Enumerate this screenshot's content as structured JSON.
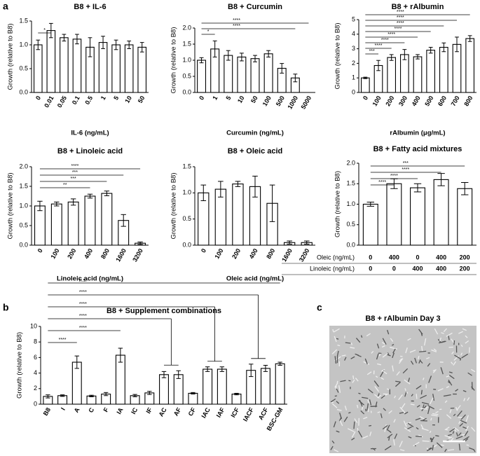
{
  "panel_labels": [
    "a",
    "b",
    "c"
  ],
  "chart_data": [
    {
      "type": "bar",
      "title": "B8 + IL-6",
      "xlabel": "IL-6 (ng/mL)",
      "ylabel": "Growth (relative to B8)",
      "categories": [
        "0",
        "0.01",
        "0.05",
        "0.1",
        "0.5",
        "1",
        "5",
        "10",
        "50"
      ],
      "values": [
        1.0,
        1.3,
        1.15,
        1.12,
        0.95,
        1.05,
        1.0,
        1.0,
        0.95
      ],
      "errors": [
        0.1,
        0.15,
        0.07,
        0.1,
        0.2,
        0.13,
        0.1,
        0.08,
        0.1
      ],
      "ylim": [
        0,
        1.5
      ],
      "yticks": [
        {
          "value": 0,
          "label": "0.0"
        },
        {
          "value": 0.5,
          "label": "0.5"
        },
        {
          "value": 1,
          "label": "1.0"
        },
        {
          "value": 1.5,
          "label": "1.5"
        }
      ],
      "comparisons": [
        {
          "label": "*",
          "to": [
            1
          ]
        }
      ]
    },
    {
      "type": "bar",
      "title": "B8 + Curcumin",
      "xlabel": "Curcumin (ng/mL)",
      "ylabel": "Growth (relative to B8)",
      "categories": [
        "0",
        "1",
        "5",
        "10",
        "50",
        "100",
        "500",
        "1000",
        "5000"
      ],
      "values": [
        1.0,
        1.35,
        1.15,
        1.1,
        1.05,
        1.2,
        0.75,
        0.45,
        0.0
      ],
      "errors": [
        0.08,
        0.25,
        0.15,
        0.12,
        0.1,
        0.1,
        0.15,
        0.12,
        0.0
      ],
      "ylim": [
        0,
        2
      ],
      "yticks": [
        {
          "value": 0,
          "label": "0.0"
        },
        {
          "value": 0.5,
          "label": "0.5"
        },
        {
          "value": 1,
          "label": "1.0"
        },
        {
          "value": 1.5,
          "label": "1.5"
        },
        {
          "value": 2,
          "label": "2.0"
        }
      ],
      "comparisons": [
        {
          "label": "****",
          "to": [
            8
          ]
        },
        {
          "label": "****",
          "to": [
            7
          ]
        },
        {
          "label": "*",
          "to": [
            1
          ]
        }
      ]
    },
    {
      "type": "bar",
      "title": "B8 + rAlbumin",
      "xlabel": "rAlbumin (μg/mL)",
      "ylabel": "Growth (relative to B8)",
      "categories": [
        "0",
        "100",
        "200",
        "300",
        "400",
        "500",
        "600",
        "700",
        "800"
      ],
      "values": [
        1.0,
        1.85,
        2.4,
        2.6,
        2.45,
        2.9,
        3.1,
        3.3,
        3.7
      ],
      "errors": [
        0.05,
        0.35,
        0.2,
        0.35,
        0.15,
        0.2,
        0.3,
        0.5,
        0.2
      ],
      "ylim": [
        0,
        5
      ],
      "yticks": [
        0,
        1,
        2,
        3,
        4,
        5
      ],
      "comparisons": [
        {
          "label": "****",
          "to": [
            8
          ]
        },
        {
          "label": "****",
          "to": [
            7
          ]
        },
        {
          "label": "****",
          "to": [
            6
          ]
        },
        {
          "label": "****",
          "to": [
            5
          ]
        },
        {
          "label": "****",
          "to": [
            4
          ]
        },
        {
          "label": "****",
          "to": [
            3
          ]
        },
        {
          "label": "****",
          "to": [
            2
          ]
        },
        {
          "label": "***",
          "to": [
            1
          ]
        }
      ]
    },
    {
      "type": "bar",
      "title": "B8 + Linoleic acid",
      "xlabel": "Linoleic acid (ng/mL)",
      "ylabel": "Growth (relative to B8)",
      "categories": [
        "0",
        "100",
        "200",
        "400",
        "800",
        "1600",
        "3200"
      ],
      "values": [
        1.0,
        1.05,
        1.1,
        1.25,
        1.32,
        0.63,
        0.05
      ],
      "errors": [
        0.12,
        0.05,
        0.08,
        0.05,
        0.06,
        0.15,
        0.03
      ],
      "ylim": [
        0,
        2
      ],
      "yticks": [
        {
          "value": 0,
          "label": "0.0"
        },
        {
          "value": 0.5,
          "label": "0.5"
        },
        {
          "value": 1,
          "label": "1.0"
        },
        {
          "value": 1.5,
          "label": "1.5"
        },
        {
          "value": 2,
          "label": "2.0"
        }
      ],
      "comparisons": [
        {
          "label": "****",
          "to": [
            6
          ]
        },
        {
          "label": "***",
          "to": [
            5
          ]
        },
        {
          "label": "***",
          "to": [
            4
          ]
        },
        {
          "label": "**",
          "to": [
            3
          ]
        }
      ]
    },
    {
      "type": "bar",
      "title": "B8 + Oleic acid",
      "xlabel": "Oleic acid (ng/mL)",
      "ylabel": "Growth (relative to B8)",
      "categories": [
        "0",
        "100",
        "200",
        "400",
        "800",
        "1600",
        "3200"
      ],
      "values": [
        1.0,
        1.07,
        1.17,
        1.12,
        0.8,
        0.05,
        0.05
      ],
      "errors": [
        0.15,
        0.15,
        0.05,
        0.2,
        0.35,
        0.03,
        0.03
      ],
      "ylim": [
        0,
        1.5
      ],
      "yticks": [
        {
          "value": 0,
          "label": "0.0"
        },
        {
          "value": 0.5,
          "label": "0.5"
        },
        {
          "value": 1,
          "label": "1.0"
        },
        {
          "value": 1.5,
          "label": "1.5"
        }
      ],
      "comparisons": []
    },
    {
      "type": "bar",
      "title": "B8 + Fatty acid mixtures",
      "ylabel": "Growth (relative to B8)",
      "categories": [
        null,
        null,
        null,
        null,
        null
      ],
      "values": [
        1.0,
        1.5,
        1.4,
        1.6,
        1.38
      ],
      "errors": [
        0.05,
        0.12,
        0.1,
        0.15,
        0.15
      ],
      "ylim": [
        0,
        2
      ],
      "yticks": [
        {
          "value": 0,
          "label": "0.0"
        },
        {
          "value": 0.5,
          "label": "0.5"
        },
        {
          "value": 1,
          "label": "1.0"
        },
        {
          "value": 1.5,
          "label": "1.5"
        },
        {
          "value": 2,
          "label": "2.0"
        }
      ],
      "comparisons": [
        {
          "label": "***",
          "to": [
            4
          ]
        },
        {
          "label": "****",
          "to": [
            3
          ]
        },
        {
          "label": "****",
          "to": [
            2
          ]
        },
        {
          "label": "****",
          "to": [
            1
          ]
        }
      ],
      "table": [
        {
          "label": "Oleic (ng/mL)",
          "values": [
            0,
            400,
            0,
            400,
            200
          ]
        },
        {
          "label": "Linoleic (ng/mL)",
          "values": [
            0,
            0,
            400,
            400,
            200
          ]
        }
      ]
    },
    {
      "type": "bar",
      "title": "B8 + Supplement combinations",
      "ylabel": "Growth (relative to B8)",
      "categories": [
        "B8",
        "I",
        "A",
        "C",
        "F",
        "IA",
        "IC",
        "IF",
        "AC",
        "AF",
        "CF",
        "IAC",
        "IAF",
        "ICF",
        "IACF",
        "ACF",
        "BSC-GM"
      ],
      "values": [
        1.0,
        1.1,
        5.4,
        1.05,
        1.3,
        6.3,
        1.1,
        1.45,
        3.8,
        3.8,
        1.4,
        4.5,
        4.5,
        1.3,
        4.35,
        4.6,
        5.2
      ],
      "errors": [
        0.2,
        0.1,
        0.8,
        0.1,
        0.2,
        0.9,
        0.15,
        0.2,
        0.4,
        0.5,
        0.1,
        0.3,
        0.3,
        0.1,
        0.8,
        0.4,
        0.2
      ],
      "ylim": [
        0,
        10
      ],
      "yticks": [
        0,
        2,
        4,
        6,
        8,
        10
      ],
      "comparisons": [
        {
          "label": "n.s.",
          "to": [
            16
          ]
        },
        {
          "label": "****",
          "to": [
            14,
            15
          ]
        },
        {
          "label": "****",
          "to": [
            11,
            12
          ]
        },
        {
          "label": "****",
          "to": [
            8,
            9
          ]
        },
        {
          "label": "****",
          "to": [
            5
          ]
        },
        {
          "label": "****",
          "to": [
            2
          ]
        }
      ]
    }
  ],
  "image_panel": {
    "title": "B8 + rAlbumin Day 3"
  }
}
